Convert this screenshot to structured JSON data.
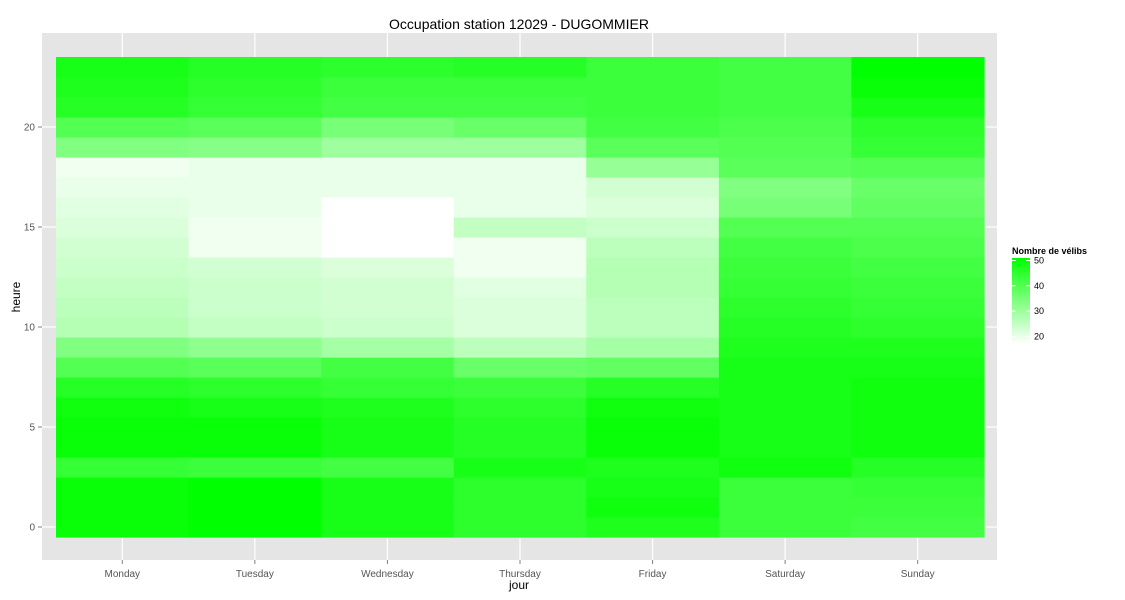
{
  "chart_data": {
    "type": "heatmap",
    "title": "Occupation station 12029 - DUGOMMIER",
    "xlabel": "jour",
    "ylabel": "heure",
    "categories": [
      "Monday",
      "Tuesday",
      "Wednesday",
      "Thursday",
      "Friday",
      "Saturday",
      "Sunday"
    ],
    "hours": [
      0,
      1,
      2,
      3,
      4,
      5,
      6,
      7,
      8,
      9,
      10,
      11,
      12,
      13,
      14,
      15,
      16,
      17,
      18,
      19,
      20,
      21,
      22,
      23
    ],
    "y_ticks": [
      0,
      5,
      10,
      15,
      20
    ],
    "ylim": [
      -0.5,
      23.5
    ],
    "grid": true,
    "legend": {
      "title": "Nombre de vélibs",
      "position": "right",
      "ticks": [
        20,
        30,
        40,
        50
      ],
      "range": [
        17,
        51
      ]
    },
    "colors": {
      "low": "#ffffff",
      "high": "#00ff00",
      "panel": "#e5e5e5",
      "grid": "#ffffff"
    },
    "values": [
      [
        50,
        51,
        48,
        45,
        47,
        43,
        42
      ],
      [
        50,
        51,
        48,
        45,
        49,
        43,
        43
      ],
      [
        50,
        51,
        48,
        45,
        48,
        43,
        44
      ],
      [
        44,
        43,
        42,
        48,
        47,
        49,
        46
      ],
      [
        50,
        50,
        48,
        46,
        50,
        48,
        49
      ],
      [
        50,
        50,
        48,
        46,
        50,
        48,
        49
      ],
      [
        49,
        48,
        47,
        45,
        49,
        48,
        49
      ],
      [
        46,
        45,
        44,
        43,
        46,
        48,
        49
      ],
      [
        40,
        39,
        42,
        37,
        38,
        48,
        48
      ],
      [
        34,
        32,
        29,
        26,
        29,
        47,
        47
      ],
      [
        27,
        25,
        24,
        22,
        26,
        46,
        45
      ],
      [
        26,
        24,
        23,
        22,
        26,
        45,
        44
      ],
      [
        25,
        24,
        23,
        21,
        27,
        44,
        43
      ],
      [
        24,
        23,
        22,
        19,
        27,
        43,
        42
      ],
      [
        23,
        19,
        17,
        19,
        26,
        42,
        41
      ],
      [
        22,
        19,
        17,
        25,
        24,
        40,
        40
      ],
      [
        21,
        20,
        17,
        20,
        22,
        35,
        38
      ],
      [
        20,
        20,
        20,
        20,
        23,
        34,
        37
      ],
      [
        19,
        20,
        20,
        20,
        31,
        39,
        40
      ],
      [
        34,
        33,
        30,
        30,
        39,
        40,
        44
      ],
      [
        40,
        39,
        35,
        37,
        42,
        41,
        45
      ],
      [
        46,
        44,
        42,
        42,
        43,
        42,
        48
      ],
      [
        47,
        45,
        43,
        43,
        43,
        42,
        50
      ],
      [
        48,
        46,
        45,
        46,
        43,
        42,
        51
      ]
    ]
  }
}
